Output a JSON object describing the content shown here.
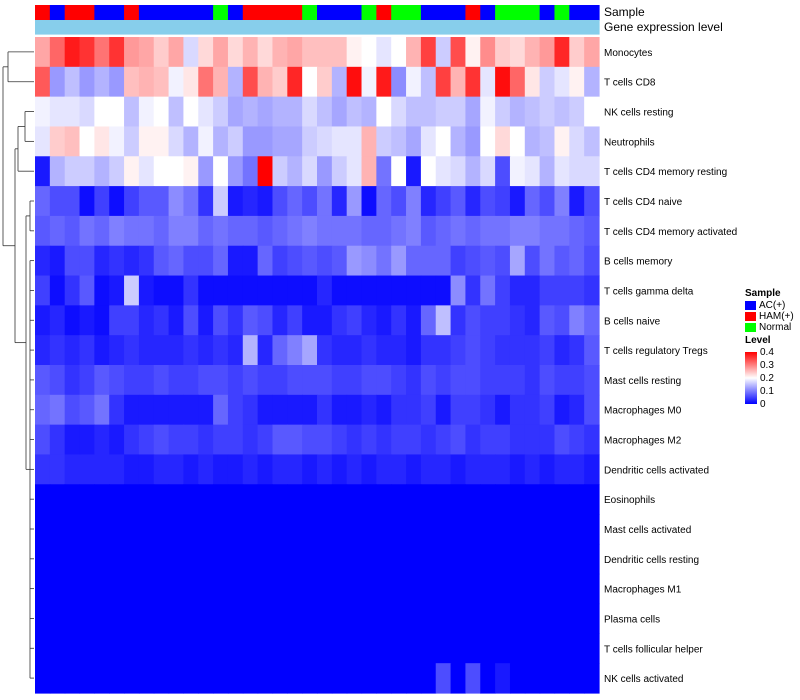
{
  "chart_data": {
    "type": "heatmap",
    "title": "",
    "annotation_tracks": [
      "Sample",
      "Gene expression level"
    ],
    "sample_groups": [
      "AC(+)",
      "HAM(+)",
      "Normal"
    ],
    "sample_colors": {
      "AC(+)": "#0000ff",
      "HAM(+)": "#ff0000",
      "Normal": "#00ff00"
    },
    "gene_expression_bar_color": "#87ceeb",
    "sample_annotation": [
      "HAM(+)",
      "AC(+)",
      "HAM(+)",
      "HAM(+)",
      "AC(+)",
      "AC(+)",
      "HAM(+)",
      "AC(+)",
      "AC(+)",
      "AC(+)",
      "AC(+)",
      "AC(+)",
      "Normal",
      "AC(+)",
      "HAM(+)",
      "HAM(+)",
      "HAM(+)",
      "HAM(+)",
      "Normal",
      "AC(+)",
      "AC(+)",
      "AC(+)",
      "Normal",
      "HAM(+)",
      "Normal",
      "Normal",
      "AC(+)",
      "AC(+)",
      "AC(+)",
      "HAM(+)",
      "AC(+)",
      "Normal",
      "Normal",
      "Normal",
      "AC(+)",
      "Normal",
      "AC(+)",
      "AC(+)"
    ],
    "rows": [
      "Monocytes",
      "T cells CD8",
      "NK cells resting",
      "Neutrophils",
      "T cells CD4 memory resting",
      "T cells CD4 naive",
      "T cells CD4 memory activated",
      "B cells memory",
      "T cells gamma delta",
      "B cells naive",
      "T cells regulatory  Tregs",
      "Mast cells resting",
      "Macrophages M0",
      "Macrophages M2",
      "Dendritic cells activated",
      "Eosinophils",
      "Mast cells activated",
      "Dendritic cells resting",
      "Macrophages M1",
      "Plasma cells",
      "T cells follicular helper",
      "NK cells activated"
    ],
    "values": [
      [
        0.27,
        0.32,
        0.38,
        0.36,
        0.31,
        0.36,
        0.28,
        0.27,
        0.24,
        0.27,
        0.17,
        0.23,
        0.27,
        0.23,
        0.26,
        0.23,
        0.26,
        0.27,
        0.25,
        0.25,
        0.25,
        0.21,
        0.2,
        0.18,
        0.2,
        0.26,
        0.35,
        0.16,
        0.34,
        0.21,
        0.29,
        0.24,
        0.23,
        0.26,
        0.28,
        0.37,
        0.24,
        0.27
      ],
      [
        0.33,
        0.12,
        0.15,
        0.12,
        0.14,
        0.12,
        0.25,
        0.26,
        0.25,
        0.19,
        0.22,
        0.31,
        0.26,
        0.14,
        0.34,
        0.26,
        0.24,
        0.37,
        0.2,
        0.24,
        0.14,
        0.39,
        0.19,
        0.38,
        0.11,
        0.19,
        0.15,
        0.35,
        0.26,
        0.36,
        0.18,
        0.39,
        0.32,
        0.22,
        0.16,
        0.18,
        0.21,
        0.14
      ],
      [
        0.19,
        0.18,
        0.18,
        0.17,
        0.2,
        0.2,
        0.15,
        0.19,
        0.2,
        0.15,
        0.2,
        0.18,
        0.16,
        0.13,
        0.14,
        0.13,
        0.14,
        0.14,
        0.17,
        0.15,
        0.13,
        0.15,
        0.14,
        0.2,
        0.17,
        0.15,
        0.15,
        0.16,
        0.16,
        0.13,
        0.19,
        0.16,
        0.14,
        0.15,
        0.16,
        0.15,
        0.16,
        0.2
      ],
      [
        0.18,
        0.24,
        0.25,
        0.2,
        0.22,
        0.19,
        0.16,
        0.21,
        0.21,
        0.17,
        0.14,
        0.19,
        0.14,
        0.16,
        0.12,
        0.12,
        0.13,
        0.13,
        0.16,
        0.17,
        0.18,
        0.18,
        0.26,
        0.16,
        0.15,
        0.13,
        0.18,
        0.2,
        0.14,
        0.12,
        0.2,
        0.23,
        0.2,
        0.14,
        0.15,
        0.21,
        0.17,
        0.15
      ],
      [
        0.02,
        0.14,
        0.16,
        0.16,
        0.14,
        0.16,
        0.21,
        0.18,
        0.2,
        0.2,
        0.21,
        0.12,
        0.2,
        0.12,
        0.09,
        0.4,
        0.16,
        0.14,
        0.17,
        0.12,
        0.16,
        0.18,
        0.26,
        0.09,
        0.2,
        0.02,
        0.2,
        0.18,
        0.17,
        0.14,
        0.17,
        0.06,
        0.19,
        0.18,
        0.14,
        0.18,
        0.17,
        0.17
      ],
      [
        0.08,
        0.06,
        0.06,
        0.01,
        0.05,
        0.01,
        0.05,
        0.07,
        0.07,
        0.11,
        0.09,
        0.04,
        0.16,
        0.02,
        0.03,
        0.02,
        0.06,
        0.08,
        0.06,
        0.09,
        0.03,
        0.12,
        0.01,
        0.08,
        0.06,
        0.1,
        0.03,
        0.05,
        0.07,
        0.03,
        0.06,
        0.05,
        0.02,
        0.08,
        0.06,
        0.1,
        0.02,
        0.06
      ],
      [
        0.07,
        0.08,
        0.07,
        0.09,
        0.08,
        0.1,
        0.09,
        0.09,
        0.08,
        0.1,
        0.1,
        0.08,
        0.09,
        0.08,
        0.08,
        0.07,
        0.08,
        0.09,
        0.1,
        0.09,
        0.09,
        0.09,
        0.08,
        0.08,
        0.09,
        0.1,
        0.07,
        0.08,
        0.09,
        0.08,
        0.09,
        0.09,
        0.1,
        0.1,
        0.09,
        0.09,
        0.08,
        0.07
      ],
      [
        0.03,
        0.02,
        0.06,
        0.06,
        0.03,
        0.04,
        0.03,
        0.04,
        0.07,
        0.08,
        0.06,
        0.06,
        0.08,
        0.02,
        0.02,
        0.08,
        0.05,
        0.06,
        0.07,
        0.06,
        0.07,
        0.12,
        0.11,
        0.09,
        0.12,
        0.08,
        0.08,
        0.08,
        0.05,
        0.06,
        0.07,
        0.06,
        0.13,
        0.06,
        0.09,
        0.07,
        0.08,
        0.06
      ],
      [
        0.05,
        0.01,
        0.04,
        0.07,
        0.01,
        0.02,
        0.16,
        0.02,
        0.01,
        0.01,
        0.04,
        0.01,
        0.01,
        0.01,
        0.01,
        0.01,
        0.01,
        0.01,
        0.01,
        0.03,
        0.01,
        0.01,
        0.01,
        0.01,
        0.01,
        0.01,
        0.01,
        0.01,
        0.11,
        0.04,
        0.09,
        0.05,
        0.03,
        0.03,
        0.05,
        0.05,
        0.05,
        0.04
      ],
      [
        0.02,
        0.03,
        0.01,
        0.02,
        0.01,
        0.05,
        0.05,
        0.03,
        0.04,
        0.02,
        0.06,
        0.02,
        0.06,
        0.04,
        0.07,
        0.06,
        0.03,
        0.05,
        0.02,
        0.02,
        0.04,
        0.05,
        0.03,
        0.02,
        0.04,
        0.02,
        0.08,
        0.15,
        0.04,
        0.06,
        0.05,
        0.05,
        0.04,
        0.03,
        0.07,
        0.06,
        0.1,
        0.08
      ],
      [
        0.03,
        0.04,
        0.03,
        0.04,
        0.02,
        0.03,
        0.04,
        0.03,
        0.03,
        0.03,
        0.04,
        0.03,
        0.04,
        0.03,
        0.14,
        0.03,
        0.08,
        0.1,
        0.13,
        0.04,
        0.03,
        0.03,
        0.04,
        0.03,
        0.03,
        0.02,
        0.04,
        0.04,
        0.05,
        0.06,
        0.05,
        0.04,
        0.04,
        0.04,
        0.05,
        0.03,
        0.04,
        0.07
      ],
      [
        0.07,
        0.06,
        0.04,
        0.05,
        0.07,
        0.06,
        0.05,
        0.05,
        0.06,
        0.05,
        0.05,
        0.06,
        0.06,
        0.05,
        0.06,
        0.05,
        0.05,
        0.06,
        0.06,
        0.06,
        0.05,
        0.05,
        0.06,
        0.06,
        0.05,
        0.04,
        0.06,
        0.05,
        0.06,
        0.06,
        0.05,
        0.05,
        0.05,
        0.04,
        0.06,
        0.05,
        0.05,
        0.06
      ],
      [
        0.08,
        0.09,
        0.06,
        0.07,
        0.09,
        0.04,
        0.02,
        0.02,
        0.02,
        0.02,
        0.02,
        0.02,
        0.08,
        0.05,
        0.04,
        0.02,
        0.02,
        0.02,
        0.02,
        0.04,
        0.02,
        0.02,
        0.03,
        0.02,
        0.04,
        0.04,
        0.05,
        0.02,
        0.05,
        0.05,
        0.04,
        0.02,
        0.04,
        0.04,
        0.05,
        0.02,
        0.03,
        0.06
      ],
      [
        0.06,
        0.04,
        0.02,
        0.02,
        0.03,
        0.02,
        0.04,
        0.05,
        0.06,
        0.05,
        0.05,
        0.04,
        0.05,
        0.05,
        0.04,
        0.05,
        0.07,
        0.07,
        0.06,
        0.06,
        0.05,
        0.04,
        0.05,
        0.04,
        0.05,
        0.05,
        0.04,
        0.05,
        0.06,
        0.04,
        0.05,
        0.05,
        0.04,
        0.04,
        0.04,
        0.06,
        0.05,
        0.04
      ],
      [
        0.04,
        0.04,
        0.03,
        0.03,
        0.03,
        0.03,
        0.02,
        0.02,
        0.03,
        0.03,
        0.02,
        0.03,
        0.02,
        0.02,
        0.03,
        0.02,
        0.03,
        0.03,
        0.02,
        0.03,
        0.02,
        0.03,
        0.02,
        0.03,
        0.03,
        0.02,
        0.03,
        0.03,
        0.02,
        0.03,
        0.03,
        0.03,
        0.02,
        0.03,
        0.02,
        0.03,
        0.03,
        0.02
      ],
      [
        0.0,
        0.0,
        0.0,
        0.0,
        0.0,
        0.0,
        0.0,
        0.0,
        0.0,
        0.0,
        0.0,
        0.0,
        0.0,
        0.0,
        0.0,
        0.0,
        0.0,
        0.0,
        0.0,
        0.0,
        0.0,
        0.0,
        0.0,
        0.0,
        0.0,
        0.0,
        0.0,
        0.0,
        0.0,
        0.0,
        0.0,
        0.0,
        0.0,
        0.0,
        0.0,
        0.0,
        0.0,
        0.0
      ],
      [
        0.0,
        0.0,
        0.0,
        0.0,
        0.0,
        0.0,
        0.0,
        0.0,
        0.0,
        0.0,
        0.0,
        0.0,
        0.0,
        0.0,
        0.0,
        0.0,
        0.0,
        0.0,
        0.0,
        0.0,
        0.0,
        0.0,
        0.0,
        0.0,
        0.0,
        0.0,
        0.0,
        0.0,
        0.0,
        0.0,
        0.0,
        0.0,
        0.0,
        0.0,
        0.0,
        0.0,
        0.0,
        0.0
      ],
      [
        0.0,
        0.0,
        0.0,
        0.0,
        0.0,
        0.0,
        0.0,
        0.0,
        0.0,
        0.0,
        0.0,
        0.0,
        0.0,
        0.0,
        0.0,
        0.0,
        0.0,
        0.0,
        0.0,
        0.0,
        0.0,
        0.0,
        0.0,
        0.0,
        0.0,
        0.0,
        0.0,
        0.0,
        0.0,
        0.0,
        0.0,
        0.0,
        0.0,
        0.0,
        0.0,
        0.0,
        0.0,
        0.0
      ],
      [
        0.0,
        0.0,
        0.0,
        0.0,
        0.0,
        0.0,
        0.0,
        0.0,
        0.0,
        0.0,
        0.0,
        0.0,
        0.0,
        0.0,
        0.0,
        0.0,
        0.0,
        0.0,
        0.0,
        0.0,
        0.0,
        0.0,
        0.0,
        0.0,
        0.0,
        0.0,
        0.0,
        0.0,
        0.0,
        0.0,
        0.0,
        0.0,
        0.0,
        0.0,
        0.0,
        0.0,
        0.0,
        0.0
      ],
      [
        0.0,
        0.0,
        0.0,
        0.0,
        0.0,
        0.0,
        0.0,
        0.0,
        0.0,
        0.0,
        0.0,
        0.0,
        0.0,
        0.0,
        0.0,
        0.0,
        0.0,
        0.0,
        0.0,
        0.0,
        0.0,
        0.0,
        0.0,
        0.0,
        0.0,
        0.0,
        0.0,
        0.0,
        0.0,
        0.0,
        0.0,
        0.0,
        0.0,
        0.0,
        0.0,
        0.0,
        0.0,
        0.0
      ],
      [
        0.0,
        0.0,
        0.0,
        0.0,
        0.0,
        0.0,
        0.0,
        0.0,
        0.0,
        0.0,
        0.0,
        0.0,
        0.0,
        0.0,
        0.0,
        0.0,
        0.0,
        0.0,
        0.0,
        0.0,
        0.0,
        0.0,
        0.0,
        0.0,
        0.0,
        0.0,
        0.0,
        0.0,
        0.0,
        0.0,
        0.0,
        0.0,
        0.0,
        0.0,
        0.0,
        0.0,
        0.0,
        0.0
      ],
      [
        0.0,
        0.0,
        0.0,
        0.0,
        0.0,
        0.0,
        0.0,
        0.0,
        0.0,
        0.0,
        0.0,
        0.0,
        0.0,
        0.0,
        0.0,
        0.0,
        0.0,
        0.0,
        0.0,
        0.0,
        0.0,
        0.0,
        0.0,
        0.0,
        0.0,
        0.0,
        0.0,
        0.06,
        0.0,
        0.06,
        0.0,
        0.02,
        0.0,
        0.0,
        0.0,
        0.0,
        0.0,
        0.0
      ]
    ],
    "color_scale": {
      "min": 0,
      "max": 0.4,
      "low_color": "#0000ff",
      "mid_color": "#ffffff",
      "high_color": "#ff0000"
    },
    "legend": {
      "sample_title": "Sample",
      "level_title": "Level",
      "level_ticks": [
        "0.4",
        "0.3",
        "0.2",
        "0.1",
        "0"
      ]
    },
    "row_dendrogram": true
  }
}
